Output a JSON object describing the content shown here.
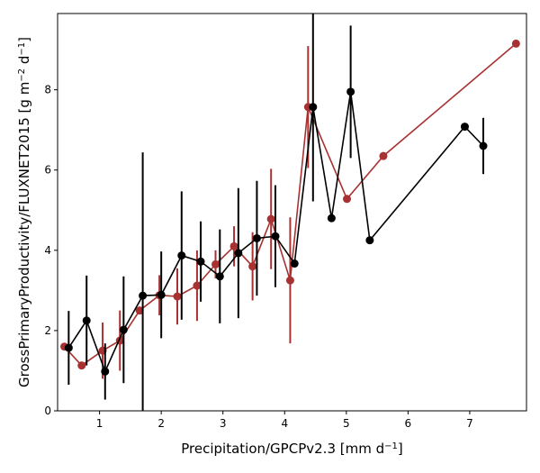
{
  "chart_data": {
    "type": "line",
    "xlabel": "Precipitation/GPCPv2.3 [mm d",
    "xlabel_unit_sup": "−1",
    "xlabel_close": "]",
    "ylabel": "GrossPrimaryProductivity/FLUXNET2015 [g m",
    "ylabel_sup1": "−2",
    "ylabel_mid": " d",
    "ylabel_sup2": "−1",
    "ylabel_close": "]",
    "xlim": [
      0.32,
      7.92
    ],
    "ylim": [
      0,
      9.9
    ],
    "xticks": [
      1,
      2,
      3,
      4,
      5,
      6,
      7
    ],
    "yticks": [
      0,
      2,
      4,
      6,
      8
    ],
    "grid": false,
    "series": [
      {
        "color": "#a83232",
        "points": [
          {
            "x": 0.43,
            "y": 1.6,
            "err": 0.0
          },
          {
            "x": 0.71,
            "y": 1.13,
            "err": 0.0
          },
          {
            "x": 1.05,
            "y": 1.5,
            "err": 0.7
          },
          {
            "x": 1.33,
            "y": 1.75,
            "err": 0.75
          },
          {
            "x": 1.65,
            "y": 2.5,
            "err": 0.0
          },
          {
            "x": 1.97,
            "y": 2.88,
            "err": 0.5
          },
          {
            "x": 2.26,
            "y": 2.85,
            "err": 0.7
          },
          {
            "x": 2.58,
            "y": 3.12,
            "err": 0.88
          },
          {
            "x": 2.88,
            "y": 3.65,
            "err": 0.35
          },
          {
            "x": 3.18,
            "y": 4.1,
            "err": 0.5
          },
          {
            "x": 3.48,
            "y": 3.6,
            "err": 0.85
          },
          {
            "x": 3.78,
            "y": 4.78,
            "err": 1.25
          },
          {
            "x": 4.09,
            "y": 3.25,
            "err": 1.57
          },
          {
            "x": 4.38,
            "y": 7.57,
            "err": 1.52
          },
          {
            "x": 5.01,
            "y": 5.28,
            "err": 0.0
          },
          {
            "x": 5.6,
            "y": 6.35,
            "err": 0.0
          },
          {
            "x": 7.75,
            "y": 9.15,
            "err": 0.0
          }
        ]
      },
      {
        "color": "#000000",
        "points": [
          {
            "x": 0.5,
            "y": 1.57,
            "err": 0.92
          },
          {
            "x": 0.79,
            "y": 2.25,
            "err": 1.12
          },
          {
            "x": 1.09,
            "y": 0.98,
            "err": 0.7
          },
          {
            "x": 1.39,
            "y": 2.02,
            "err": 1.33
          },
          {
            "x": 1.7,
            "y": 2.87,
            "err": 3.57
          },
          {
            "x": 2.0,
            "y": 2.89,
            "err": 1.08
          },
          {
            "x": 2.33,
            "y": 3.87,
            "err": 1.6
          },
          {
            "x": 2.64,
            "y": 3.72,
            "err": 1.0
          },
          {
            "x": 2.95,
            "y": 3.35,
            "err": 1.17
          },
          {
            "x": 3.25,
            "y": 3.93,
            "err": 1.62
          },
          {
            "x": 3.55,
            "y": 4.3,
            "err": 1.43
          },
          {
            "x": 3.85,
            "y": 4.35,
            "err": 1.27
          },
          {
            "x": 4.16,
            "y": 3.67,
            "err": 0.0
          },
          {
            "x": 4.46,
            "y": 7.57,
            "err": 2.35
          },
          {
            "x": 4.76,
            "y": 4.8,
            "err": 0.0
          },
          {
            "x": 5.07,
            "y": 7.95,
            "err": 1.65
          },
          {
            "x": 5.38,
            "y": 4.25,
            "err": 0.0
          },
          {
            "x": 6.92,
            "y": 7.08,
            "err": 0.0
          },
          {
            "x": 7.22,
            "y": 6.6,
            "err": 0.7
          }
        ]
      }
    ]
  }
}
